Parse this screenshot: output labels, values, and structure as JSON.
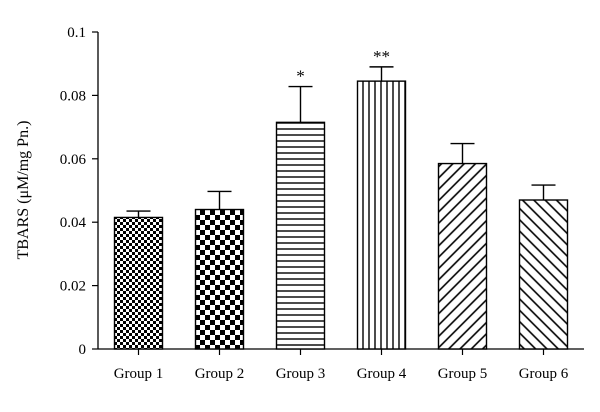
{
  "chart_data": {
    "type": "bar",
    "title": "",
    "xlabel": "",
    "ylabel": "TBARS (μM/mg Pn.)",
    "ylim": [
      0,
      0.1
    ],
    "yticks": [
      0,
      0.02,
      0.04,
      0.06,
      0.08,
      0.1
    ],
    "ytick_labels": [
      "0",
      "0.02",
      "0.04",
      "0.06",
      "0.08",
      "0.1"
    ],
    "categories": [
      "Group 1",
      "Group 2",
      "Group 3",
      "Group 4",
      "Group 5",
      "Group 6"
    ],
    "values": [
      0.0415,
      0.044,
      0.0715,
      0.0845,
      0.0585,
      0.047
    ],
    "errors": [
      0.002,
      0.0057,
      0.0113,
      0.0045,
      0.0063,
      0.0047
    ],
    "significance": [
      "",
      "",
      "*",
      "**",
      "",
      ""
    ],
    "patterns": [
      "fine-checker",
      "coarse-checker",
      "horizontal-lines",
      "vertical-lines",
      "diagonal-forward",
      "diagonal-backward"
    ],
    "grid": false,
    "legend": "none",
    "bar_color": "#000000",
    "background": "#ffffff"
  }
}
